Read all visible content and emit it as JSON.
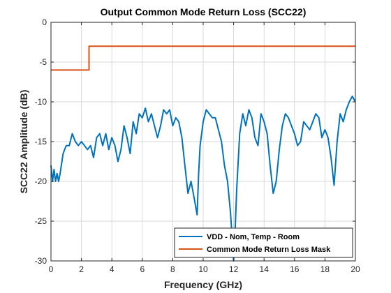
{
  "chart_data": {
    "type": "line",
    "title": "Output Common Mode Return Loss (SCC22)",
    "xlabel": "Frequency (GHz)",
    "ylabel": "SCC22 Amplitude (dB)",
    "xlim": [
      0,
      20
    ],
    "ylim": [
      -30,
      0
    ],
    "xticks": [
      0,
      2,
      4,
      6,
      8,
      10,
      12,
      14,
      16,
      18,
      20
    ],
    "yticks": [
      0,
      -5,
      -10,
      -15,
      -20,
      -25,
      -30
    ],
    "xtick_labels": [
      "0",
      "2",
      "4",
      "6",
      "8",
      "10",
      "12",
      "14",
      "16",
      "18",
      "20"
    ],
    "ytick_labels": [
      "0",
      "-5",
      "-10",
      "-15",
      "-20",
      "-25",
      "-30"
    ],
    "grid": true,
    "legend_position": "bottom-right",
    "series": [
      {
        "name": "VDD - Nom, Temp - Room",
        "color": "#0072BD",
        "x": [
          0,
          0.1,
          0.2,
          0.3,
          0.4,
          0.5,
          0.6,
          0.8,
          1.0,
          1.2,
          1.4,
          1.6,
          1.8,
          2.0,
          2.2,
          2.4,
          2.6,
          2.8,
          3.0,
          3.2,
          3.4,
          3.6,
          3.8,
          4.0,
          4.2,
          4.4,
          4.6,
          4.8,
          5.0,
          5.2,
          5.4,
          5.6,
          5.8,
          6.0,
          6.2,
          6.4,
          6.6,
          6.8,
          7.0,
          7.2,
          7.4,
          7.6,
          7.8,
          8.0,
          8.2,
          8.4,
          8.6,
          8.8,
          9.0,
          9.2,
          9.4,
          9.6,
          9.7,
          9.8,
          10.0,
          10.2,
          10.4,
          10.6,
          10.8,
          11.0,
          11.2,
          11.4,
          11.6,
          11.8,
          12.0,
          12.1,
          12.2,
          12.4,
          12.6,
          12.8,
          13.0,
          13.2,
          13.4,
          13.6,
          13.8,
          14.0,
          14.2,
          14.4,
          14.6,
          14.8,
          15.0,
          15.2,
          15.4,
          15.6,
          15.8,
          16.0,
          16.2,
          16.4,
          16.6,
          16.8,
          17.0,
          17.2,
          17.4,
          17.6,
          17.8,
          18.0,
          18.2,
          18.4,
          18.6,
          18.8,
          19.0,
          19.2,
          19.4,
          19.6,
          19.8,
          20.0
        ],
        "y": [
          -18,
          -20,
          -18.5,
          -20,
          -19,
          -20,
          -19,
          -16.5,
          -15.5,
          -15.5,
          -14,
          -15,
          -15.5,
          -15,
          -15.5,
          -16,
          -15.5,
          -17,
          -14.5,
          -14,
          -15.5,
          -14,
          -16,
          -14.5,
          -15.5,
          -17.5,
          -16,
          -13,
          -14.5,
          -16.5,
          -12.5,
          -14,
          -11.5,
          -12,
          -10.8,
          -12.5,
          -11.5,
          -13,
          -14.5,
          -13,
          -11,
          -11.5,
          -11,
          -13,
          -12,
          -12.5,
          -14.5,
          -18,
          -21.5,
          -20,
          -22,
          -24.2,
          -19,
          -15.5,
          -12.5,
          -11,
          -11.5,
          -12,
          -12,
          -13.5,
          -15,
          -18,
          -20,
          -24,
          -30,
          -26,
          -21,
          -14,
          -11.5,
          -13,
          -11,
          -12,
          -14.5,
          -15.5,
          -11.5,
          -12.5,
          -14,
          -18,
          -21.5,
          -20,
          -16,
          -13,
          -11.5,
          -12,
          -13,
          -14,
          -15.5,
          -15,
          -12.5,
          -13,
          -13.5,
          -12.5,
          -11.5,
          -12,
          -14.5,
          -13.5,
          -14.5,
          -17,
          -20.5,
          -15,
          -11.5,
          -12.5,
          -11,
          -10,
          -9.3,
          -10
        ]
      },
      {
        "name": "Common Mode Return Loss Mask",
        "color": "#D95319",
        "x": [
          0,
          2.5,
          2.5,
          20
        ],
        "y": [
          -6,
          -6,
          -3,
          -3
        ]
      }
    ]
  }
}
